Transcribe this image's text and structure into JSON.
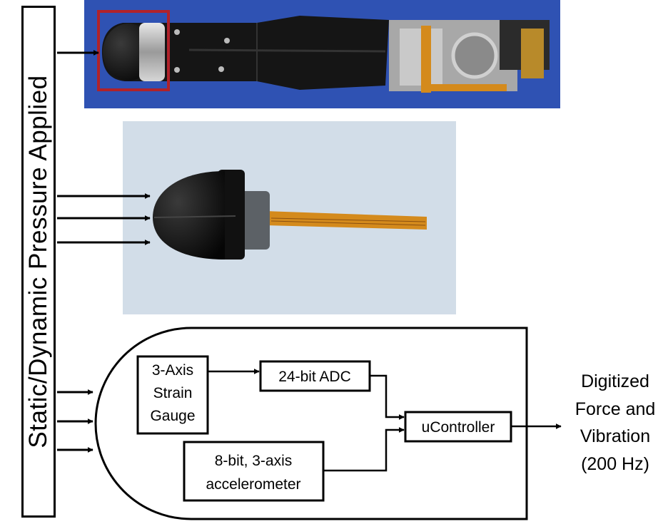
{
  "vertical_label": "Static/Dynamic Pressure Applied",
  "blocks": {
    "strain_gauge": [
      "3-Axis",
      "Strain",
      "Gauge"
    ],
    "adc": "24-bit ADC",
    "accelerometer": [
      "8-bit, 3-axis",
      "accelerometer"
    ],
    "controller": "uController"
  },
  "output_label": [
    "Digitized",
    "Force and",
    "Vibration",
    "(200 Hz)"
  ],
  "colors": {
    "photo_top_background": "#2f52b3",
    "photo_middle_background": "#d2dde8",
    "highlight_box": "#b0222a",
    "flex_cable": "#d48a1c",
    "line": "#000000"
  }
}
